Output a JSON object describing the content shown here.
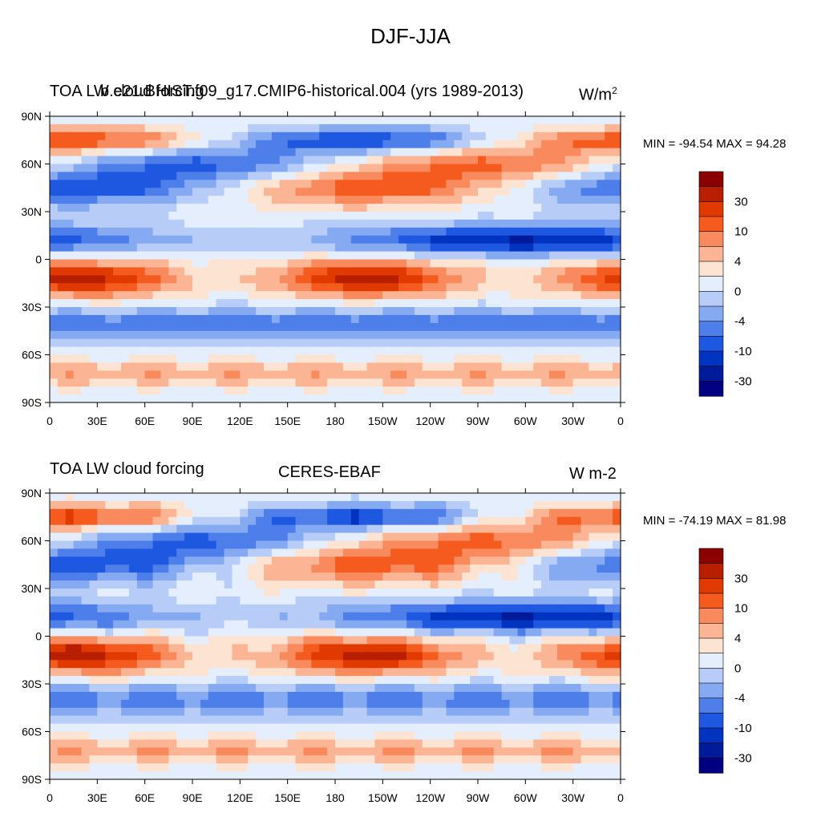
{
  "figure_title": "DJF-JJA",
  "panels": [
    {
      "left_title": "TOA LW cloud forcing",
      "center_title": "b.e21.BHIST.f09_g17.CMIP6-historical.004 (yrs 1989-2013)",
      "units_base": "W/m",
      "units_exp": "2",
      "stats": "MIN = -94.54 MAX =  94.28"
    },
    {
      "left_title": "TOA LW cloud forcing",
      "center_title": "CERES-EBAF",
      "units": "W m-2",
      "stats": "MIN = -74.19 MAX =  81.98"
    }
  ],
  "chart_data": [
    {
      "type": "heatmap",
      "title": "DJF-JJA",
      "subtitle": "TOA LW cloud forcing — b.e21.BHIST.f09_g17.CMIP6-historical.004 (yrs 1989-2013)",
      "units": "W/m2",
      "min": -94.54,
      "max": 94.28,
      "xlim": [
        0,
        360
      ],
      "ylim": [
        -90,
        90
      ],
      "x_ticks": [
        "0",
        "30E",
        "60E",
        "90E",
        "120E",
        "150E",
        "180",
        "150W",
        "120W",
        "90W",
        "60W",
        "30W",
        "0"
      ],
      "y_ticks": [
        "90N",
        "60N",
        "30N",
        "0",
        "30S",
        "60S",
        "90S"
      ],
      "colorbar_labels": [
        "30",
        "10",
        "4",
        "0",
        "-4",
        "-10",
        "-30"
      ],
      "colorbar_colors": [
        "#8b0000",
        "#b81e00",
        "#e03a00",
        "#f55a1e",
        "#f98a5e",
        "#fcb594",
        "#fde3d1",
        "#e4eefc",
        "#b7cdf8",
        "#86aaf2",
        "#4d7ee9",
        "#1f58e0",
        "#0034c0",
        "#001a9a",
        "#000080"
      ]
    },
    {
      "type": "heatmap",
      "title": "DJF-JJA",
      "subtitle": "TOA LW cloud forcing — CERES-EBAF",
      "units": "W m-2",
      "min": -74.19,
      "max": 81.98,
      "xlim": [
        0,
        360
      ],
      "ylim": [
        -90,
        90
      ],
      "x_ticks": [
        "0",
        "30E",
        "60E",
        "90E",
        "120E",
        "150E",
        "180",
        "150W",
        "120W",
        "90W",
        "60W",
        "30W",
        "0"
      ],
      "y_ticks": [
        "90N",
        "60N",
        "30N",
        "0",
        "30S",
        "60S",
        "90S"
      ],
      "colorbar_labels": [
        "30",
        "10",
        "4",
        "0",
        "-4",
        "-10",
        "-30"
      ],
      "colorbar_colors": [
        "#8b0000",
        "#b81e00",
        "#e03a00",
        "#f55a1e",
        "#f98a5e",
        "#fcb594",
        "#fde3d1",
        "#e4eefc",
        "#b7cdf8",
        "#86aaf2",
        "#4d7ee9",
        "#1f58e0",
        "#0034c0",
        "#001a9a",
        "#000080"
      ]
    }
  ]
}
